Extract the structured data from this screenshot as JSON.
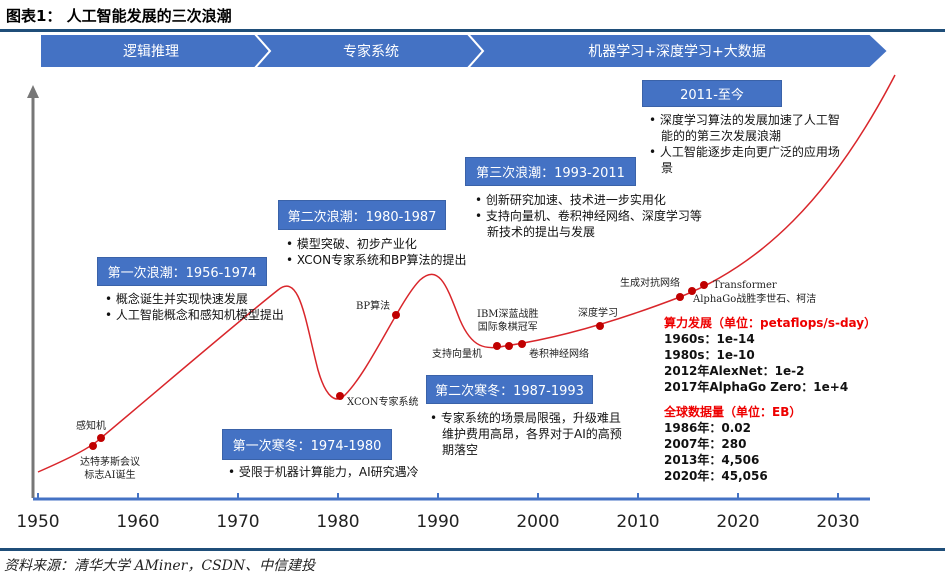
{
  "title": "图表1：  人工智能发展的三次浪潮",
  "phases": [
    "逻辑推理",
    "专家系统",
    "机器学习+深度学习+大数据"
  ],
  "waves": [
    {
      "label": "第一次浪潮：1956-1974",
      "bullets": [
        "概念诞生并实现快速发展",
        "人工智能概念和感知机模型提出"
      ]
    },
    {
      "label": "第二次浪潮：1980-1987",
      "bullets": [
        "模型突破、初步产业化",
        "XCON专家系统和BP算法的提出"
      ]
    },
    {
      "label": "第三次浪潮：1993-2011",
      "bullets": [
        "创新研究加速、技术进一步实用化",
        "支持向量机、卷积神经网络、深度学习等新技术的提出与发展"
      ]
    },
    {
      "label": "2011-至今",
      "bullets": [
        "深度学习算法的发展加速了人工智能的的第三次发展浪潮",
        "人工智能逐步走向更广泛的应用场景"
      ]
    }
  ],
  "winters": [
    {
      "label": "第一次寒冬：1974-1980",
      "bullets": [
        "受限于机器计算能力，AI研究遇冷"
      ]
    },
    {
      "label": "第二次寒冬：1987-1993",
      "bullets": [
        "专家系统的场景局限强，升级难且维护费用高昂，各界对于AI的高预期落空"
      ]
    }
  ],
  "events": {
    "perceptron": "感知机",
    "dartmouth": "达特茅斯会议\n标志AI诞生",
    "xcon": "XCON专家系统",
    "bp": "BP算法",
    "ibm": "IBM深蓝战胜\n国际象棋冠军",
    "svm": "支持向量机",
    "cnn": "卷积神经网络",
    "dl": "深度学习",
    "gan": "生成对抗网络",
    "transformer": "Transformer",
    "alphago": "AlphaGo战胜李世石、柯洁"
  },
  "compute": {
    "heading": "算力发展（单位：petaflops/s-day）",
    "items": [
      "1960s：1e-14",
      "1980s：1e-10",
      "2012年AlexNet：1e-2",
      "2017年AlphaGo Zero：1e+4"
    ]
  },
  "data_volume": {
    "heading": "全球数据量（单位：EB）",
    "items": [
      "1986年：0.02",
      "2007年：280",
      "2013年：4,506",
      "2020年：45,056"
    ]
  },
  "x_axis": {
    "ticks": [
      "1950",
      "1960",
      "1970",
      "1980",
      "1990",
      "2000",
      "2010",
      "2020",
      "2030"
    ]
  },
  "colors": {
    "box": "#4472c4",
    "curve": "#d9262b",
    "dot": "#c00000",
    "accent_text": "#ff0000",
    "axis": "#4472c4"
  },
  "source": "资料来源：清华大学 AMiner，CSDN、中信建投"
}
